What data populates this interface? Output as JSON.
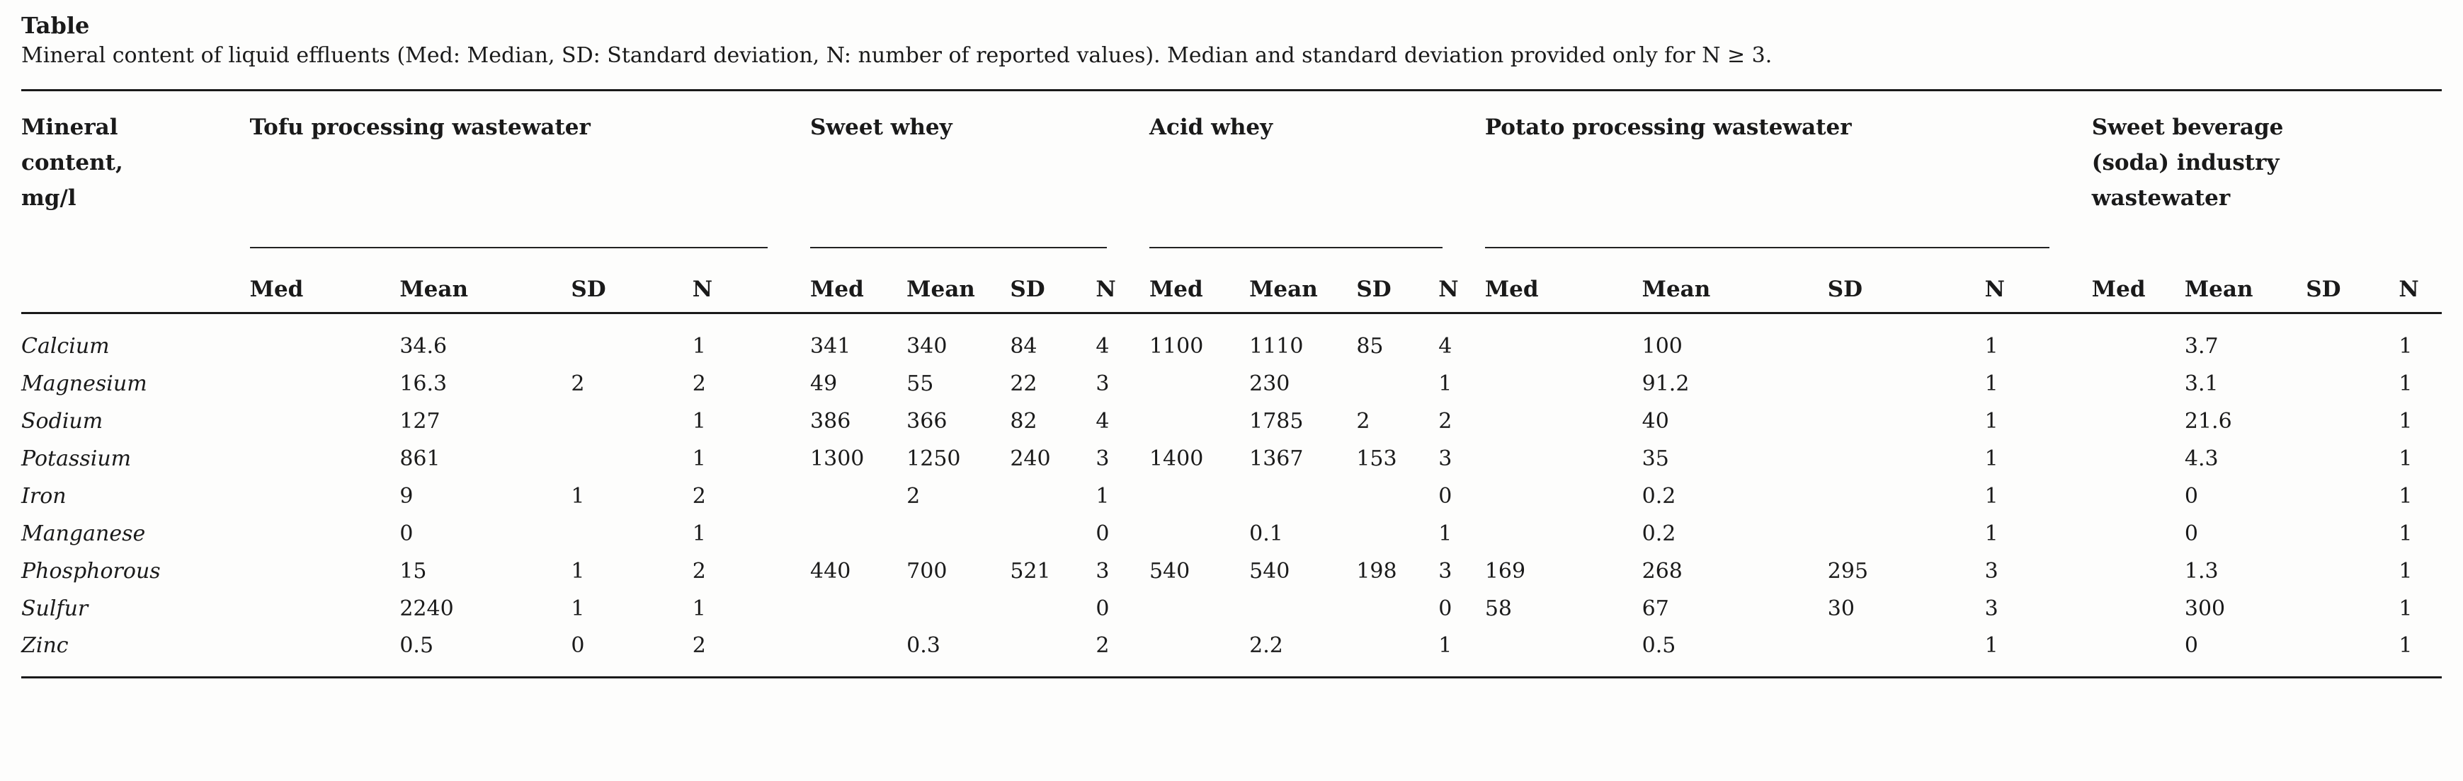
{
  "page": {
    "title": "Table",
    "caption": "Mineral content of liquid effluents (Med: Median, SD: Standard deviation, N: number of reported values). Median and standard deviation provided only for N ≥ 3."
  },
  "table": {
    "row_header": "Mineral\ncontent,\nmg/l",
    "groups": [
      {
        "label": "Tofu processing wastewater"
      },
      {
        "label": "Sweet whey"
      },
      {
        "label": "Acid whey"
      },
      {
        "label": "Potato processing wastewater"
      },
      {
        "label": "Sweet beverage\n(soda) industry\nwastewater"
      }
    ],
    "subheaders": [
      "Med",
      "Mean",
      "SD",
      "N"
    ],
    "rows": [
      {
        "mineral": "Calcium",
        "values": [
          "",
          "34.6",
          "",
          "1",
          "341",
          "340",
          "84",
          "4",
          "1100",
          "1110",
          "85",
          "4",
          "",
          "100",
          "",
          "1",
          "",
          "3.7",
          "",
          "1"
        ]
      },
      {
        "mineral": "Magnesium",
        "values": [
          "",
          "16.3",
          "2",
          "2",
          "49",
          "55",
          "22",
          "3",
          "",
          "230",
          "",
          "1",
          "",
          "91.2",
          "",
          "1",
          "",
          "3.1",
          "",
          "1"
        ]
      },
      {
        "mineral": "Sodium",
        "values": [
          "",
          "127",
          "",
          "1",
          "386",
          "366",
          "82",
          "4",
          "",
          "1785",
          "2",
          "2",
          "",
          "40",
          "",
          "1",
          "",
          "21.6",
          "",
          "1"
        ]
      },
      {
        "mineral": "Potassium",
        "values": [
          "",
          "861",
          "",
          "1",
          "1300",
          "1250",
          "240",
          "3",
          "1400",
          "1367",
          "153",
          "3",
          "",
          "35",
          "",
          "1",
          "",
          "4.3",
          "",
          "1"
        ]
      },
      {
        "mineral": "Iron",
        "values": [
          "",
          "9",
          "1",
          "2",
          "",
          "2",
          "",
          "1",
          "",
          "",
          "",
          "0",
          "",
          "0.2",
          "",
          "1",
          "",
          "0",
          "",
          "1"
        ]
      },
      {
        "mineral": "Manganese",
        "values": [
          "",
          "0",
          "",
          "1",
          "",
          "",
          "",
          "0",
          "",
          "0.1",
          "",
          "1",
          "",
          "0.2",
          "",
          "1",
          "",
          "0",
          "",
          "1"
        ]
      },
      {
        "mineral": "Phosphorous",
        "values": [
          "",
          "15",
          "1",
          "2",
          "440",
          "700",
          "521",
          "3",
          "540",
          "540",
          "198",
          "3",
          "169",
          "268",
          "295",
          "3",
          "",
          "1.3",
          "",
          "1"
        ]
      },
      {
        "mineral": "Sulfur",
        "values": [
          "",
          "2240",
          "1",
          "1",
          "",
          "",
          "",
          "0",
          "",
          "",
          "",
          "0",
          "58",
          "67",
          "30",
          "3",
          "",
          "300",
          "",
          "1"
        ]
      },
      {
        "mineral": "Zinc",
        "values": [
          "",
          "0.5",
          "0",
          "2",
          "",
          "0.3",
          "",
          "2",
          "",
          "2.2",
          "",
          "1",
          "",
          "0.5",
          "",
          "1",
          "",
          "0",
          "",
          "1"
        ]
      }
    ]
  }
}
